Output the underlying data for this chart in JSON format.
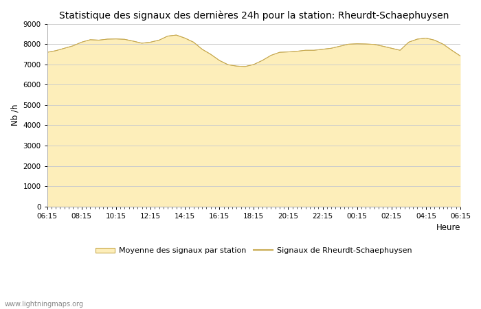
{
  "title": "Statistique des signaux des dernières 24h pour la station: Rheurdt-Schaephuysen",
  "xlabel": "Heure",
  "ylabel": "Nb /h",
  "ylim": [
    0,
    9000
  ],
  "yticks": [
    0,
    1000,
    2000,
    3000,
    4000,
    5000,
    6000,
    7000,
    8000,
    9000
  ],
  "xtick_labels": [
    "06:15",
    "08:15",
    "10:15",
    "12:15",
    "14:15",
    "16:15",
    "18:15",
    "20:15",
    "22:15",
    "00:15",
    "02:15",
    "04:15",
    "06:15"
  ],
  "fill_color": "#FDEEBA",
  "fill_edge_color": "#C8AA50",
  "line_color": "#C8AA50",
  "bg_color": "#FFFFFF",
  "plot_bg_color": "#FFFFFF",
  "grid_color": "#CCCCCC",
  "title_fontsize": 10,
  "legend_label_fill": "Moyenne des signaux par station",
  "legend_label_line": "Signaux de Rheurdt-Schaephuysen",
  "watermark": "www.lightningmaps.org",
  "x_values": [
    0,
    1,
    2,
    3,
    4,
    5,
    6,
    7,
    8,
    9,
    10,
    11,
    12,
    13,
    14,
    15,
    16,
    17,
    18,
    19,
    20,
    21,
    22,
    23,
    24,
    25,
    26,
    27,
    28,
    29,
    30,
    31,
    32,
    33,
    34,
    35,
    36,
    37,
    38,
    39,
    40,
    41,
    42,
    43,
    44,
    45,
    46,
    47,
    48
  ],
  "y_fill": [
    7600,
    7680,
    7800,
    7920,
    8100,
    8220,
    8200,
    8250,
    8260,
    8240,
    8150,
    8050,
    8100,
    8200,
    8400,
    8450,
    8300,
    8100,
    7750,
    7500,
    7200,
    6990,
    6920,
    6900,
    7000,
    7200,
    7450,
    7600,
    7620,
    7650,
    7700,
    7700,
    7750,
    7800,
    7900,
    8000,
    8020,
    8010,
    7990,
    7900,
    7800,
    7700,
    8100,
    8250,
    8300,
    8200,
    8000,
    7700,
    7420
  ],
  "y_line": [
    7600,
    7680,
    7800,
    7920,
    8100,
    8220,
    8200,
    8250,
    8260,
    8240,
    8150,
    8050,
    8100,
    8200,
    8400,
    8450,
    8300,
    8100,
    7750,
    7500,
    7200,
    6990,
    6920,
    6900,
    7000,
    7200,
    7450,
    7600,
    7620,
    7650,
    7700,
    7700,
    7750,
    7800,
    7900,
    8000,
    8020,
    8010,
    7990,
    7900,
    7800,
    7700,
    8100,
    8250,
    8300,
    8200,
    8000,
    7700,
    7420
  ]
}
